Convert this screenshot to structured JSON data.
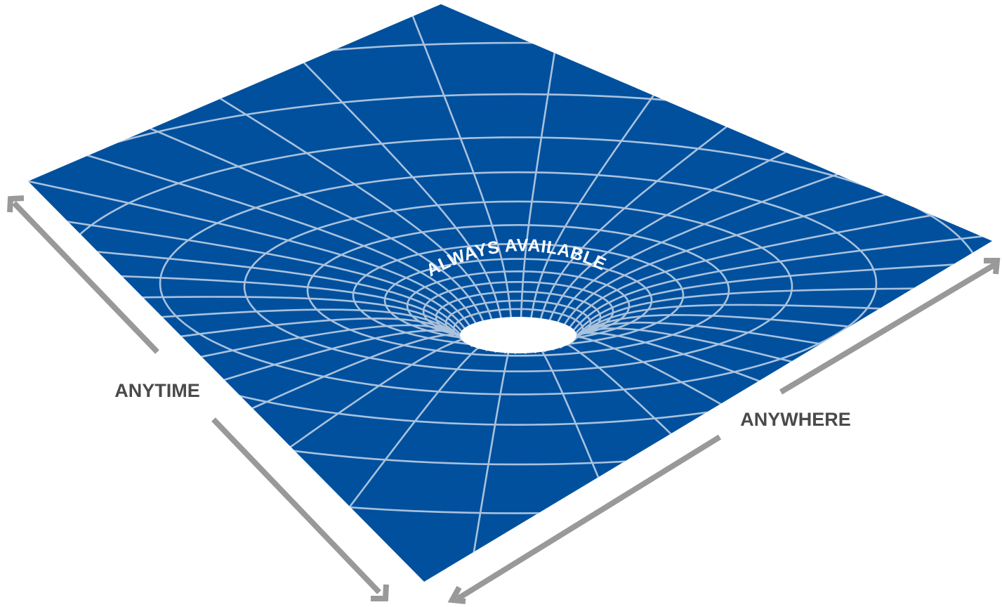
{
  "diagram": {
    "center_text": "ALWAYS  AVAILABLE",
    "left_arrow_label": "ANYTIME",
    "right_arrow_label": "ANYWHERE"
  },
  "colors": {
    "surface": "#00509E",
    "grid_line": "#A9C2DD",
    "hole": "#ffffff",
    "arrow": "#999999",
    "label_text": "#4a4a4a",
    "center_text": "#ffffff"
  }
}
